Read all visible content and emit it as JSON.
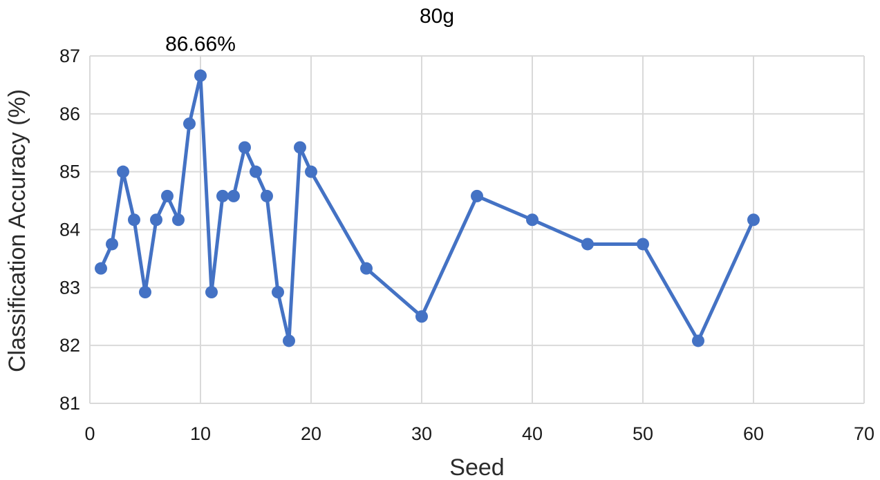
{
  "chart_data": {
    "type": "line",
    "title": "80g",
    "xlabel": "Seed",
    "ylabel": "Classification Accuracy (%)",
    "xlim": [
      0,
      70
    ],
    "ylim": [
      81,
      87
    ],
    "xticks": [
      0,
      10,
      20,
      30,
      40,
      50,
      60,
      70
    ],
    "yticks": [
      81,
      82,
      83,
      84,
      85,
      86,
      87
    ],
    "grid": true,
    "series": [
      {
        "name": "Accuracy",
        "color": "#4472c4",
        "x": [
          1,
          2,
          3,
          4,
          5,
          6,
          7,
          8,
          9,
          10,
          11,
          12,
          13,
          14,
          15,
          16,
          17,
          18,
          19,
          20,
          25,
          30,
          35,
          40,
          45,
          50,
          55,
          60
        ],
        "values": [
          83.33,
          83.75,
          85.0,
          84.17,
          82.92,
          84.17,
          84.58,
          84.17,
          85.83,
          86.66,
          82.92,
          84.58,
          84.58,
          85.42,
          85.0,
          84.58,
          82.92,
          82.08,
          85.42,
          85.0,
          83.33,
          82.5,
          84.58,
          84.17,
          83.75,
          83.75,
          82.08,
          84.17
        ]
      }
    ],
    "annotations": [
      {
        "text": "86.66%",
        "x": 10,
        "y": 86.66
      }
    ]
  }
}
